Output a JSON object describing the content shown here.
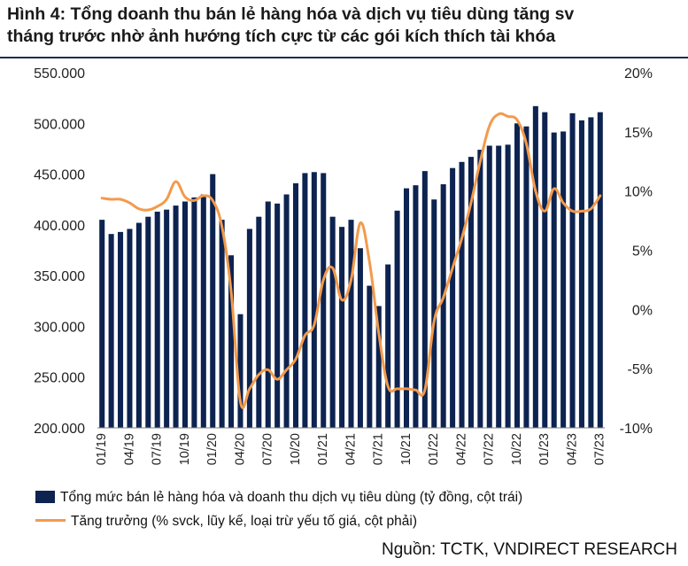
{
  "figure": {
    "title_line1": "Hình 4: Tổng doanh thu bán lẻ hàng hóa và dịch vụ tiêu dùng tăng sv",
    "title_line2": "tháng trước nhờ ảnh hướng tích cực từ các gói kích thích tài khóa",
    "source": "Nguồn: TCTK, VNDIRECT RESEARCH"
  },
  "legend": {
    "bar_label": "Tổng mức bán lẻ hàng hóa và doanh thu dịch vụ tiêu dùng (tỷ đồng, cột trái)",
    "line_label": "Tăng trưởng (% svck, lũy kế, loại trừ yếu tố giá, cột phải)"
  },
  "colors": {
    "bar": "#0d2350",
    "line": "#f39a4c"
  },
  "chart_data": {
    "type": "bar",
    "categories": [
      "01/19",
      "02/19",
      "03/19",
      "04/19",
      "05/19",
      "06/19",
      "07/19",
      "08/19",
      "09/19",
      "10/19",
      "11/19",
      "12/19",
      "01/20",
      "02/20",
      "03/20",
      "04/20",
      "05/20",
      "06/20",
      "07/20",
      "08/20",
      "09/20",
      "10/20",
      "11/20",
      "12/20",
      "01/21",
      "02/21",
      "03/21",
      "04/21",
      "05/21",
      "06/21",
      "07/21",
      "08/21",
      "09/21",
      "10/21",
      "11/21",
      "12/21",
      "01/22",
      "02/22",
      "03/22",
      "04/22",
      "05/22",
      "06/22",
      "07/22",
      "08/22",
      "09/22",
      "10/22",
      "11/22",
      "12/22",
      "01/23",
      "02/23",
      "03/23",
      "04/23",
      "05/23",
      "06/23",
      "07/23"
    ],
    "x_tick_labels": [
      "01/19",
      "04/19",
      "07/19",
      "10/19",
      "01/20",
      "04/20",
      "07/20",
      "10/20",
      "01/21",
      "04/21",
      "07/21",
      "10/21",
      "01/22",
      "04/22",
      "07/22",
      "10/22",
      "01/23",
      "04/23",
      "07/23"
    ],
    "series": [
      {
        "name": "Tổng mức bán lẻ hàng hóa và doanh thu dịch vụ tiêu dùng (tỷ đồng, cột trái)",
        "type": "bar",
        "axis": "left",
        "values": [
          405000,
          391000,
          393000,
          396000,
          402000,
          408000,
          413000,
          415000,
          419000,
          423000,
          427000,
          430000,
          450000,
          405000,
          370000,
          312000,
          396000,
          408000,
          423000,
          421000,
          430000,
          441000,
          451000,
          452000,
          451000,
          408000,
          398000,
          405000,
          377000,
          340000,
          320000,
          361000,
          414000,
          436000,
          439000,
          453000,
          425000,
          440000,
          456000,
          462000,
          467000,
          474000,
          478000,
          478000,
          479000,
          500000,
          497000,
          517000,
          511000,
          491000,
          492000,
          510000,
          503000,
          506000,
          511000
        ]
      },
      {
        "name": "Tăng trưởng (% svck, lũy kế, loại trừ yếu tố giá, cột phải)",
        "type": "line",
        "axis": "right",
        "values": [
          9.4,
          9.3,
          9.3,
          9.0,
          8.5,
          8.4,
          8.7,
          9.3,
          10.8,
          9.5,
          9.2,
          9.6,
          9.2,
          7.0,
          1.5,
          -7.8,
          -6.7,
          -5.5,
          -5.1,
          -5.9,
          -5.1,
          -4.2,
          -2.2,
          -1.3,
          2.5,
          3.5,
          0.8,
          2.5,
          7.3,
          4.0,
          -2.0,
          -6.5,
          -6.7,
          -6.7,
          -6.8,
          -6.8,
          -1.0,
          1.0,
          3.5,
          6.0,
          9.0,
          12.5,
          15.5,
          16.5,
          16.3,
          16.0,
          14.0,
          10.0,
          8.3,
          10.2,
          9.0,
          8.3,
          8.3,
          8.5,
          9.6
        ]
      }
    ],
    "y_left": {
      "ylim": [
        200000,
        550000
      ],
      "tick_labels": [
        "200.000",
        "250.000",
        "300.000",
        "350.000",
        "400.000",
        "450.000",
        "500.000",
        "550.000"
      ]
    },
    "y_right": {
      "ylim": [
        -10,
        20
      ],
      "tick_labels": [
        "-10%",
        "-5%",
        "0%",
        "5%",
        "10%",
        "15%",
        "20%"
      ]
    },
    "grid": false,
    "legend_position": "bottom"
  }
}
